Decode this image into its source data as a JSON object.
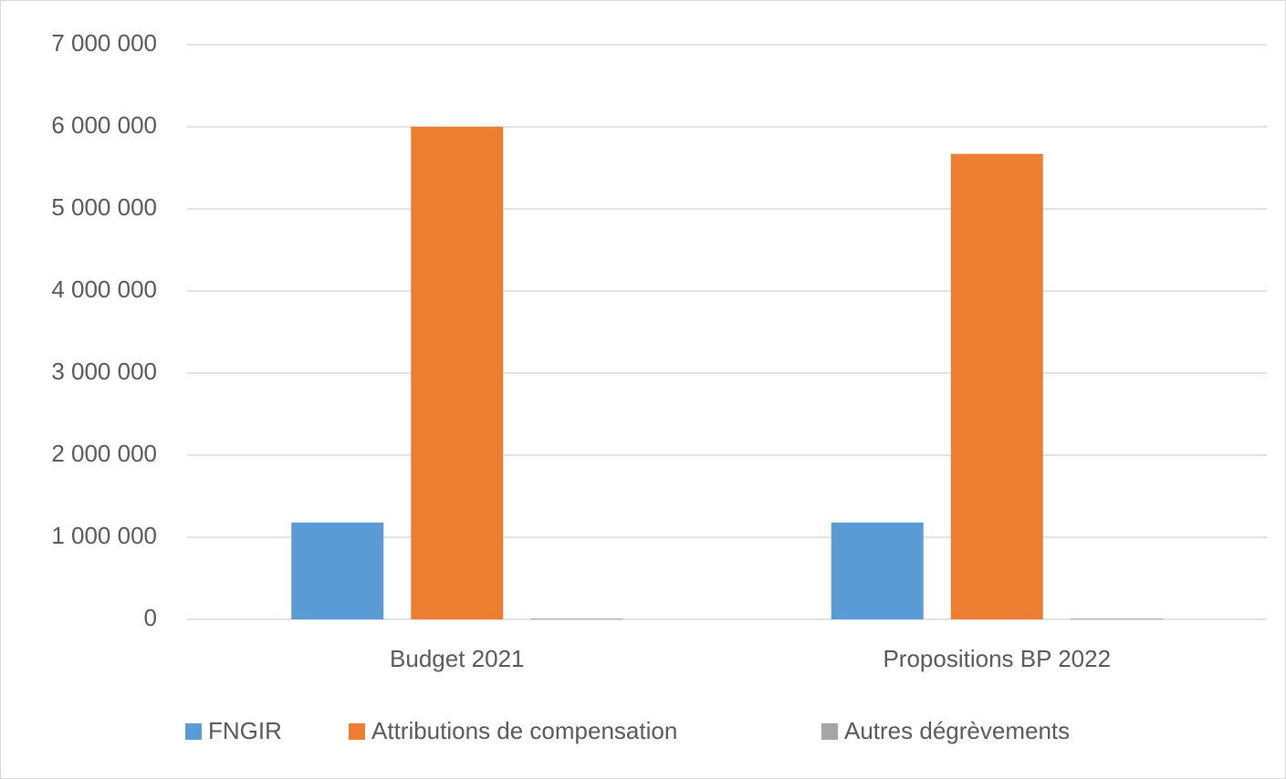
{
  "chart_data": {
    "type": "bar",
    "categories": [
      "Budget 2021",
      "Propositions BP 2022"
    ],
    "series": [
      {
        "name": "FNGIR",
        "color": "#5b9bd5",
        "values": [
          1180000,
          1180000
        ]
      },
      {
        "name": "Attributions de compensation",
        "color": "#ed7d31",
        "values": [
          6000000,
          5670000
        ]
      },
      {
        "name": "Autres dégrèvements",
        "color": "#a5a5a5",
        "values": [
          10000,
          10000
        ]
      }
    ],
    "ylim": [
      0,
      7000000
    ],
    "yticks": [
      0,
      {
        "value": 1000000,
        "label": "1 000 000"
      },
      {
        "value": 2000000,
        "label": "2 000 000"
      },
      {
        "value": 3000000,
        "label": "3 000 000"
      },
      {
        "value": 4000000,
        "label": "4 000 000"
      },
      {
        "value": 5000000,
        "label": "5 000 000"
      },
      {
        "value": 6000000,
        "label": "6 000 000"
      },
      {
        "value": 7000000,
        "label": "7 000 000"
      }
    ],
    "grid": true,
    "legend": "bottom"
  }
}
